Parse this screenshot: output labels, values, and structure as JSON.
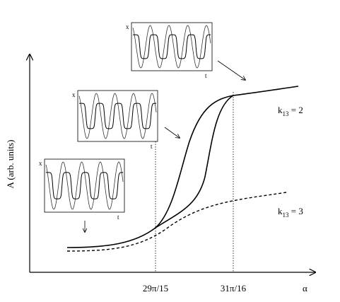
{
  "axes": {
    "y_label": "A (arb. units)",
    "x_label": "α",
    "x_ticks": [
      "29π/15",
      "31π/16"
    ]
  },
  "curve_labels": [
    {
      "symbol": "k",
      "subscript": "13",
      "rest": " = 2"
    },
    {
      "symbol": "k",
      "subscript": "13",
      "rest": " = 3"
    }
  ],
  "insets": [
    {
      "x_label": "x",
      "t_label": "t"
    },
    {
      "x_label": "x",
      "t_label": "t"
    },
    {
      "x_label": "x",
      "t_label": "t"
    }
  ]
}
